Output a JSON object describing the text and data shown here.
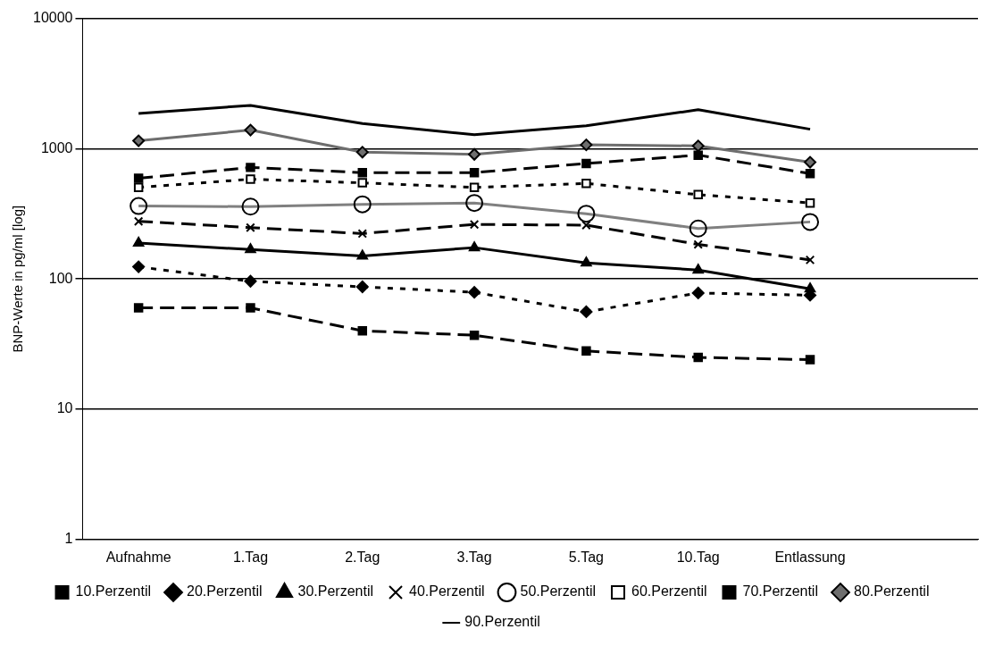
{
  "chart_data": {
    "type": "line",
    "ylabel": "BNP-Werte in pg/ml [log]",
    "categories": [
      "Aufnahme",
      "1.Tag",
      "2.Tag",
      "3.Tag",
      "5.Tag",
      "10.Tag",
      "Entlassung",
      null
    ],
    "log": "y",
    "ylim": [
      1,
      10000
    ],
    "yticks": [
      1,
      10,
      100,
      1000,
      10000
    ],
    "grid": "y",
    "legend": "bottom",
    "series": [
      {
        "name": "10.Perzentil",
        "color": "#000000",
        "marker": "square",
        "line_style": "dashed",
        "values": [
          60,
          60,
          40,
          37,
          28,
          25,
          24,
          null
        ]
      },
      {
        "name": "20.Perzentil",
        "color": "#000000",
        "marker": "diamond",
        "line_style": "dotted",
        "values": [
          124,
          96,
          87,
          79,
          56,
          78,
          75,
          null
        ]
      },
      {
        "name": "30.Perzentil",
        "color": "#000000",
        "marker": "triangle",
        "line_style": "solid",
        "values": [
          189,
          168,
          150,
          174,
          133,
          117,
          84,
          null
        ]
      },
      {
        "name": "40.Perzentil",
        "color": "#000000",
        "marker": "cross",
        "line_style": "dashed",
        "values": [
          277,
          248,
          223,
          262,
          259,
          184,
          140,
          null
        ]
      },
      {
        "name": "50.Perzentil",
        "color": "#808080",
        "marker": "circle",
        "line_style": "solid",
        "values": [
          363,
          359,
          374,
          383,
          317,
          244,
          274,
          null
        ]
      },
      {
        "name": "60.Perzentil",
        "color": "#000000",
        "marker": "square",
        "line_style": "dotted",
        "values": [
          504,
          583,
          547,
          504,
          541,
          444,
          383,
          null
        ]
      },
      {
        "name": "70.Perzentil",
        "color": "#000000",
        "marker": "square",
        "line_style": "dashed",
        "values": [
          593,
          718,
          655,
          655,
          770,
          892,
          644,
          null
        ]
      },
      {
        "name": "80.Perzentil",
        "color": "#6e6e6e",
        "marker": "diamond",
        "line_style": "solid",
        "values": [
          1150,
          1390,
          940,
          905,
          1070,
          1050,
          787,
          null
        ]
      },
      {
        "name": "90.Perzentil",
        "color": "#000000",
        "marker": "none",
        "line_style": "solid",
        "values": [
          1860,
          2150,
          1560,
          1280,
          1500,
          1990,
          1410,
          null
        ]
      }
    ]
  }
}
